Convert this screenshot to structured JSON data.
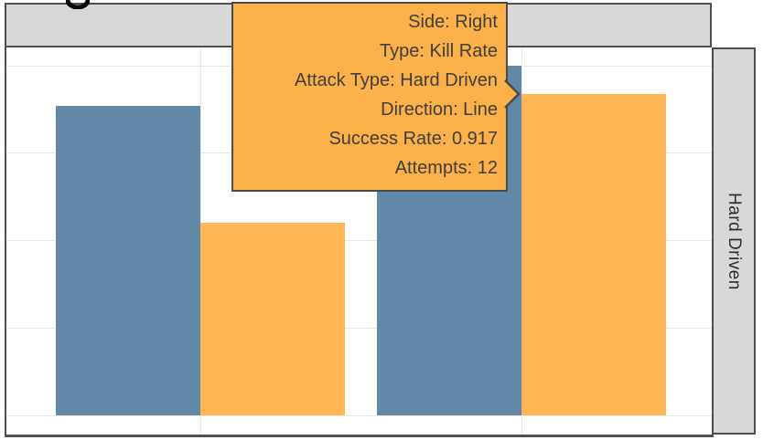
{
  "window": {
    "cropped_title_fragment": "g"
  },
  "facets": {
    "column_strip_label": "",
    "row_strip_label": "Hard Driven"
  },
  "tooltip": {
    "lines": [
      "Side: Right",
      "Type: Kill Rate",
      "Attack Type: Hard Driven",
      "Direction: Line",
      "Success Rate: 0.917",
      "Attempts: 12"
    ],
    "background": "#fbb049",
    "border_color": "#4a4a4a",
    "text_color": "#3f3f3f"
  },
  "chart_data": {
    "type": "bar",
    "title": "",
    "facet_row_label": "Hard Driven",
    "categories": [
      "",
      ""
    ],
    "x_tick_labels_visible": false,
    "series": [
      {
        "name": "blue",
        "color": "#5d84a4",
        "values": [
          0.884,
          1.0
        ]
      },
      {
        "name": "orange",
        "color": "#feb451",
        "values": [
          0.55,
          0.917
        ]
      }
    ],
    "ylim": [
      0,
      1.05
    ],
    "gridlines_y": [
      0,
      0.25,
      0.5,
      0.75,
      1.0
    ],
    "grid": true,
    "legend": "none",
    "hovered": {
      "series": "orange",
      "category_index": 1,
      "side": "Right",
      "type": "Kill Rate",
      "attack_type": "Hard Driven",
      "direction": "Line",
      "success_rate": 0.917,
      "attempts": 12
    }
  },
  "colors": {
    "strip_bg": "#d8d8d8",
    "strip_border": "#4f4f4f",
    "gridline": "#e8e8e8",
    "plot_bg": "#ffffff",
    "bar_blue": "#5d84a4",
    "bar_orange": "#feb451"
  }
}
